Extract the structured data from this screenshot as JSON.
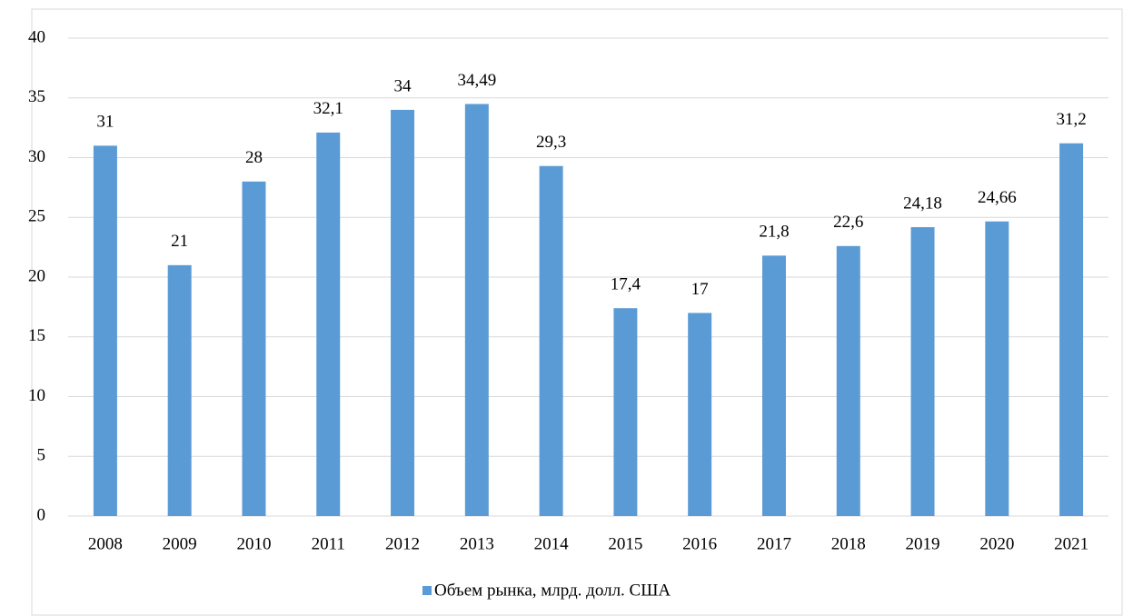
{
  "chart_data": {
    "type": "bar",
    "categories": [
      "2008",
      "2009",
      "2010",
      "2011",
      "2012",
      "2013",
      "2014",
      "2015",
      "2016",
      "2017",
      "2018",
      "2019",
      "2020",
      "2021"
    ],
    "series": [
      {
        "name": "Объем рынка, млрд. долл. США",
        "color": "#5b9bd5",
        "values": [
          31,
          21,
          28,
          32.1,
          34,
          34.49,
          29.3,
          17.4,
          17,
          21.8,
          22.6,
          24.18,
          24.66,
          31.2
        ],
        "value_labels": [
          "31",
          "21",
          "28",
          "32,1",
          "34",
          "34,49",
          "29,3",
          "17,4",
          "17",
          "21,8",
          "22,6",
          "24,18",
          "24,66",
          "31,2"
        ]
      }
    ],
    "ylim": [
      0,
      40
    ],
    "yticks": [
      0,
      5,
      10,
      15,
      20,
      25,
      30,
      35,
      40
    ],
    "grid": true,
    "legend": "bottom"
  }
}
